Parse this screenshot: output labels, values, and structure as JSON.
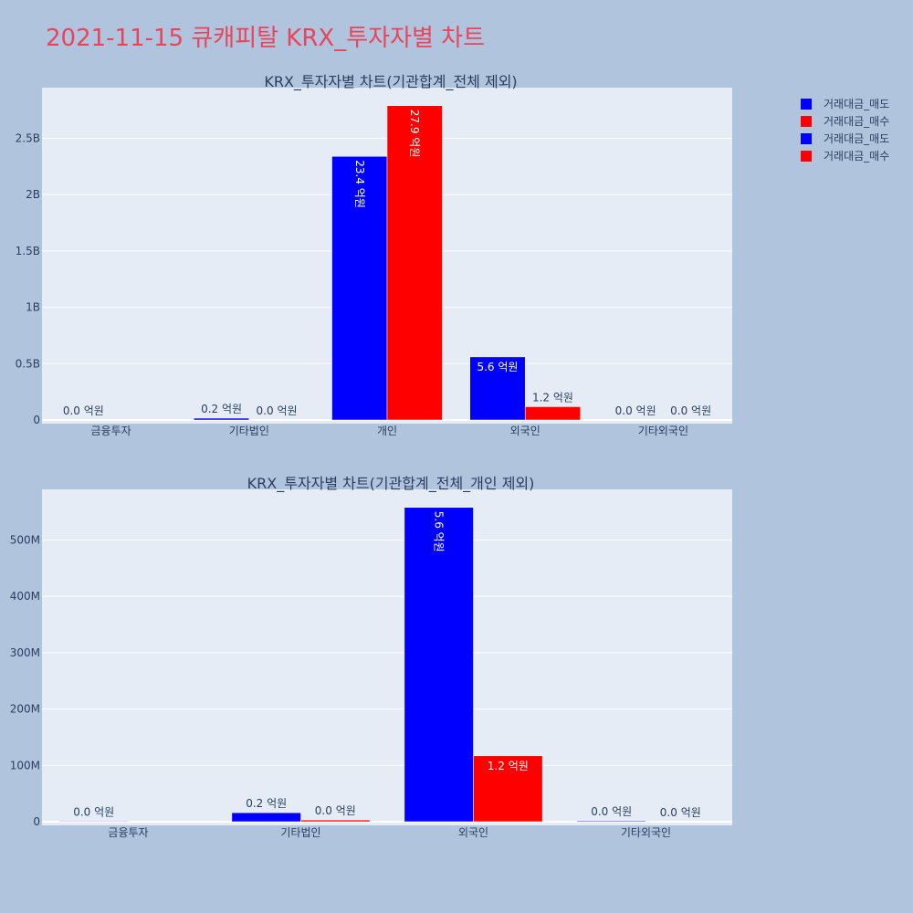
{
  "title": "2021-11-15 큐캐피탈 KRX_투자자별 차트",
  "colors": {
    "title": "#e8455c",
    "sell": "#0000ff",
    "buy": "#ff0000",
    "plot_bg": "#e5ecf6",
    "paper_bg": "#b0c4de"
  },
  "legend": [
    {
      "label": "거래대금_매도",
      "color": "#0000ff"
    },
    {
      "label": "거래대금_매수",
      "color": "#ff0000"
    },
    {
      "label": "거래대금_매도",
      "color": "#0000ff"
    },
    {
      "label": "거래대금_매수",
      "color": "#ff0000"
    }
  ],
  "chart_data": [
    {
      "type": "bar",
      "title": "KRX_투자자별 차트(기관합계_전체 제외)",
      "categories": [
        "금융투자",
        "기타법인",
        "개인",
        "외국인",
        "기타외국인"
      ],
      "ylim": [
        0,
        2950000000
      ],
      "yticks": [
        0,
        500000000,
        1000000000,
        1500000000,
        2000000000,
        2500000000
      ],
      "ytick_labels": [
        "0",
        "0.5B",
        "1B",
        "1.5B",
        "2B",
        "2.5B"
      ],
      "series": [
        {
          "name": "거래대금_매도",
          "color": "#0000ff",
          "values": [
            0,
            16000000,
            2340000000,
            560000000,
            0
          ],
          "labels": [
            "0.0 억원",
            "0.2 억원",
            "23.4 억원",
            "5.6 억원",
            "0.0 억원"
          ]
        },
        {
          "name": "거래대금_매수",
          "color": "#ff0000",
          "values": [
            0,
            0,
            2790000000,
            118000000,
            0
          ],
          "labels": [
            "",
            "0.0 억원",
            "27.9 억원",
            "1.2 억원",
            "0.0 억원"
          ]
        }
      ]
    },
    {
      "type": "bar",
      "title": "KRX_투자자별 차트(기관합계_전체_개인 제외)",
      "categories": [
        "금융투자",
        "기타법인",
        "외국인",
        "기타외국인"
      ],
      "ylim": [
        0,
        590000000
      ],
      "yticks": [
        0,
        100000000,
        200000000,
        300000000,
        400000000,
        500000000
      ],
      "ytick_labels": [
        "0",
        "100M",
        "200M",
        "300M",
        "400M",
        "500M"
      ],
      "series": [
        {
          "name": "거래대금_매도",
          "color": "#0000ff",
          "values": [
            1000000,
            16000000,
            558000000,
            1500000
          ],
          "labels": [
            "0.0 억원",
            "0.2 억원",
            "5.6 억원",
            "0.0 억원"
          ]
        },
        {
          "name": "거래대금_매수",
          "color": "#ff0000",
          "values": [
            0,
            3000000,
            117000000,
            0
          ],
          "labels": [
            "",
            "0.0 억원",
            "1.2 억원",
            "0.0 억원"
          ]
        }
      ]
    }
  ]
}
